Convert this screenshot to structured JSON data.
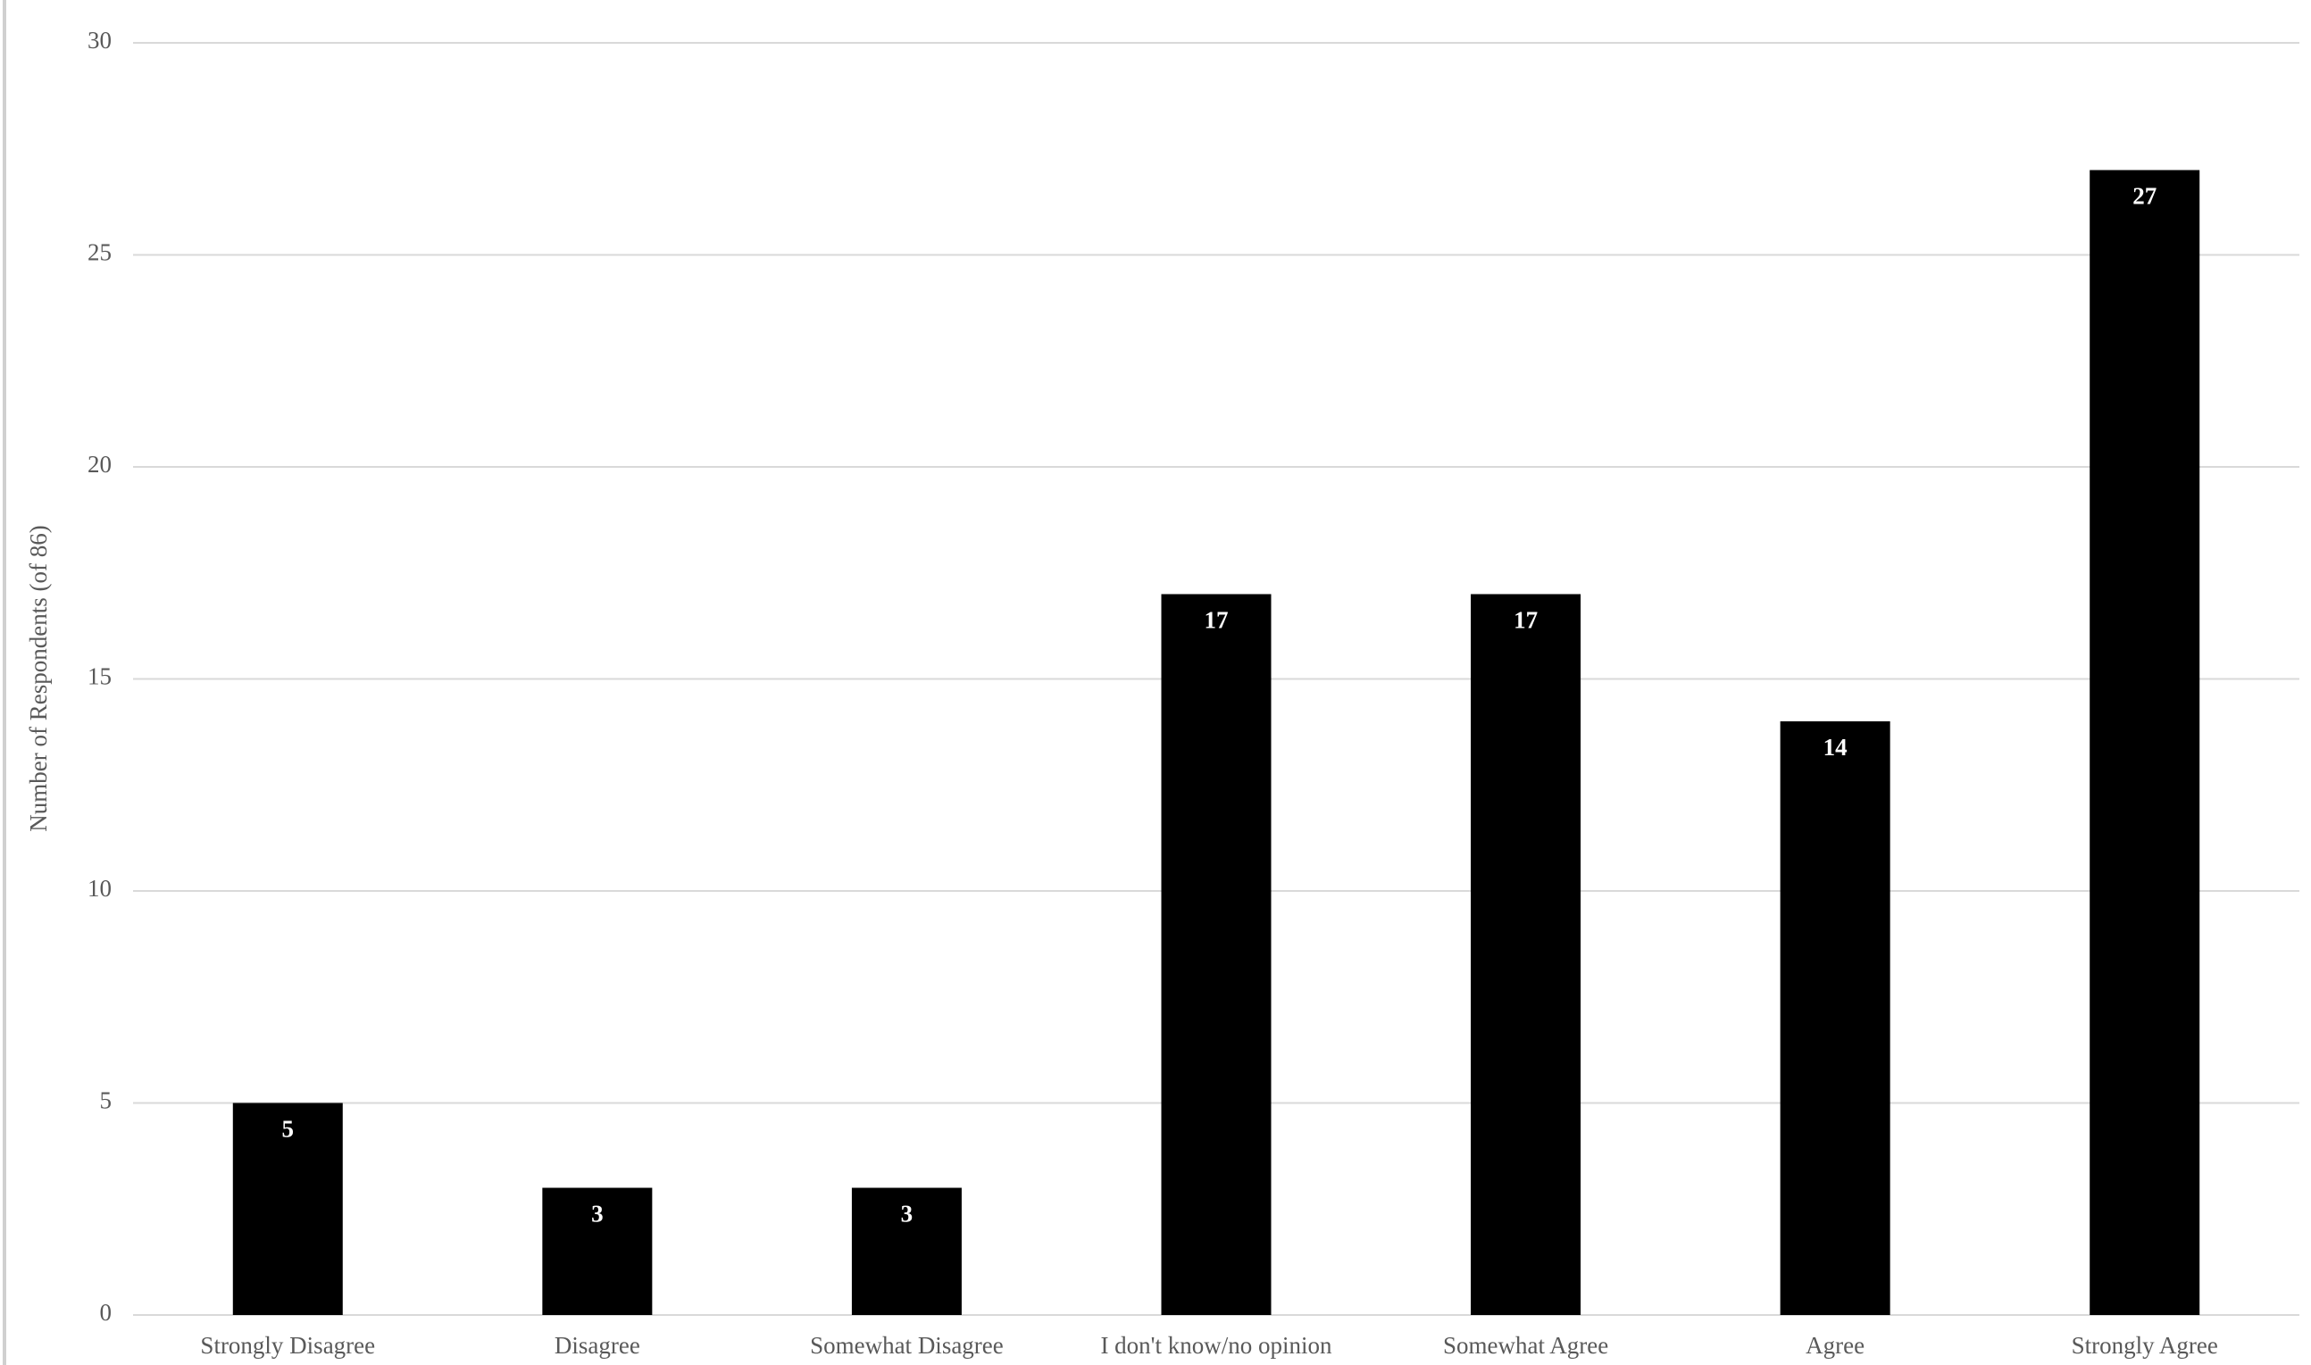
{
  "chart_data": {
    "type": "bar",
    "y_label": "Number of Respondents (of 86)",
    "categories": [
      "Strongly Disagree",
      "Disagree",
      "Somewhat Disagree",
      "I don't know/no opinion",
      "Somewhat Agree",
      "Agree",
      "Strongly Agree"
    ],
    "values": [
      5,
      3,
      3,
      17,
      17,
      14,
      27
    ],
    "color": "#000000",
    "ylim": [
      0,
      30
    ],
    "yticks": [
      0,
      5,
      10,
      15,
      20,
      25,
      30
    ],
    "grid": true
  }
}
